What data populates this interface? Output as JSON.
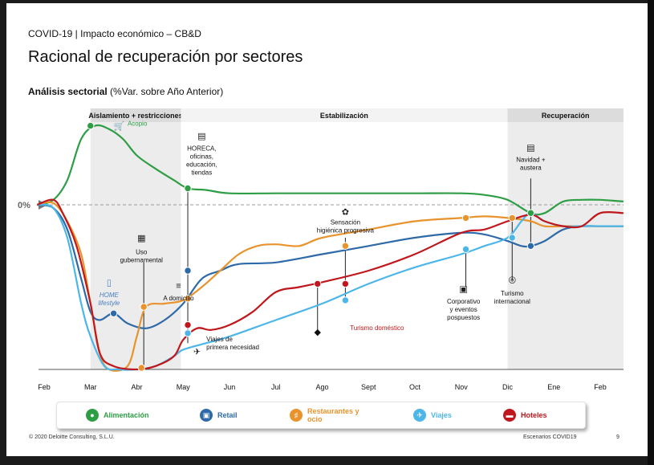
{
  "header": {
    "breadcrumb": "COVID-19 | Impacto económico – CB&D",
    "title": "Racional de recuperación por sectores",
    "subtitle_bold": "Análisis sectorial",
    "subtitle_rest": " (%Var. sobre Año Anterior)"
  },
  "footer": {
    "copyright": "© 2020 Deloitte Consulting, S.L.U.",
    "deck_name": "Escenarios COVID19",
    "page": "9"
  },
  "colors": {
    "alimentacion": "#2e9e45",
    "retail": "#2e6aa8",
    "restaurantes": "#e8932c",
    "viajes": "#4cb6e8",
    "hoteles": "#c0171c",
    "phase_bg": "#ececec",
    "zero_line": "#9a9a9a"
  },
  "chart_data": {
    "type": "line",
    "title": "Análisis sectorial (%Var. sobre Año Anterior)",
    "xlabel": "",
    "ylabel": "%Var. sobre Año Anterior",
    "ylim": [
      -100,
      50
    ],
    "zero_label": "0%",
    "grid": false,
    "legend_position": "bottom",
    "categories": [
      "Feb",
      "Mar",
      "Abr",
      "May",
      "Jun",
      "Jul",
      "Ago",
      "Sept",
      "Oct",
      "Nov",
      "Dic",
      "Ene",
      "Feb"
    ],
    "phases": [
      {
        "name": "Aislamiento + restricciones",
        "start": 1.0,
        "end": 2.95,
        "shaded": true
      },
      {
        "name": "Estabilización",
        "start": 2.95,
        "end": 10.0,
        "shaded": false
      },
      {
        "name": "Recuperación",
        "start": 10.0,
        "end": 12.5,
        "shaded": true
      }
    ],
    "series": [
      {
        "name": "Alimentación",
        "key": "alimentacion",
        "x": [
          -0.15,
          0.2,
          0.5,
          0.8,
          1.1,
          1.4,
          1.7,
          2.0,
          2.4,
          2.8,
          3.1,
          3.5,
          4.0,
          5.0,
          6.0,
          7.0,
          8.0,
          9.0,
          9.5,
          10.0,
          10.5,
          10.8,
          11.2,
          11.6,
          12.0,
          12.5
        ],
        "y": [
          0,
          3,
          15,
          40,
          48,
          46,
          40,
          30,
          22,
          15,
          10,
          9,
          7,
          7,
          7,
          7,
          7,
          7,
          6,
          3,
          -5,
          -5,
          2,
          3,
          3,
          2
        ]
      },
      {
        "name": "Retail",
        "key": "retail",
        "x": [
          -0.15,
          0.2,
          0.5,
          0.8,
          1.0,
          1.2,
          1.5,
          1.8,
          2.2,
          2.6,
          3.0,
          3.4,
          3.8,
          4.2,
          5.0,
          6.0,
          7.0,
          8.0,
          9.0,
          9.5,
          10.0,
          10.3,
          10.5,
          10.8,
          11.2,
          11.6,
          12.0,
          12.5
        ],
        "y": [
          0,
          -2,
          -15,
          -45,
          -65,
          -70,
          -66,
          -72,
          -75,
          -70,
          -60,
          -45,
          -40,
          -36,
          -35,
          -30,
          -25,
          -20,
          -17,
          -18,
          -22,
          -25,
          -25,
          -22,
          -15,
          -13,
          -13,
          -13
        ]
      },
      {
        "name": "Restaurantes y ocio",
        "key": "restaurantes",
        "x": [
          -0.15,
          0.2,
          0.5,
          0.8,
          1.0,
          1.2,
          1.4,
          1.8,
          2.0,
          2.2,
          2.6,
          3.0,
          3.4,
          3.8,
          4.2,
          4.6,
          5.0,
          5.5,
          6.0,
          7.0,
          8.0,
          9.0,
          9.5,
          10.0,
          10.5,
          10.8,
          11.2,
          11.6,
          12.0,
          12.5
        ],
        "y": [
          0,
          1,
          -10,
          -30,
          -60,
          -90,
          -100,
          -98,
          -80,
          -62,
          -60,
          -58,
          -50,
          -40,
          -30,
          -25,
          -24,
          -25,
          -20,
          -15,
          -10,
          -8,
          -7,
          -8,
          -10,
          -13,
          -13,
          -13,
          -13,
          -13
        ]
      },
      {
        "name": "Viajes",
        "key": "viajes",
        "x": [
          -0.15,
          0.2,
          0.5,
          0.8,
          1.0,
          1.3,
          1.6,
          2.0,
          2.4,
          2.8,
          3.0,
          3.5,
          4.0,
          5.0,
          6.0,
          7.0,
          8.0,
          9.0,
          9.5,
          10.0,
          10.3,
          10.5,
          10.8,
          11.2,
          11.6,
          12.0,
          12.5
        ],
        "y": [
          0,
          -2,
          -20,
          -60,
          -80,
          -98,
          -100,
          -100,
          -98,
          -92,
          -88,
          -84,
          -80,
          -70,
          -60,
          -48,
          -38,
          -30,
          -25,
          -20,
          -10,
          -5,
          -10,
          -13,
          -13,
          -13,
          -13
        ]
      },
      {
        "name": "Hoteles",
        "key": "hoteles",
        "x": [
          -0.15,
          0.2,
          0.4,
          0.7,
          1.0,
          1.2,
          1.5,
          2.0,
          2.4,
          2.8,
          3.0,
          3.3,
          3.6,
          4.0,
          4.5,
          5.0,
          5.5,
          6.0,
          7.0,
          8.0,
          9.0,
          9.5,
          10.0,
          10.5,
          10.8,
          11.2,
          11.6,
          12.0,
          12.5
        ],
        "y": [
          0,
          3,
          -5,
          -25,
          -60,
          -90,
          -98,
          -100,
          -98,
          -92,
          -82,
          -75,
          -76,
          -73,
          -65,
          -53,
          -50,
          -47,
          -40,
          -30,
          -17,
          -15,
          -10,
          -6,
          -10,
          -13,
          -13,
          -5,
          -5
        ]
      }
    ],
    "markers": [
      {
        "series": "alimentacion",
        "x": 1.0,
        "y": 48
      },
      {
        "series": "alimentacion",
        "x": 3.1,
        "y": 10
      },
      {
        "series": "alimentacion",
        "x": 10.5,
        "y": -5
      },
      {
        "series": "retail",
        "x": 1.5,
        "y": -66
      },
      {
        "series": "retail",
        "x": 3.1,
        "y": -40
      },
      {
        "series": "retail",
        "x": 10.5,
        "y": -25
      },
      {
        "series": "restaurantes",
        "x": 2.15,
        "y": -62
      },
      {
        "series": "restaurantes",
        "x": 3.1,
        "y": -57
      },
      {
        "series": "restaurantes",
        "x": 6.5,
        "y": -25
      },
      {
        "series": "restaurantes",
        "x": 9.1,
        "y": -8
      },
      {
        "series": "restaurantes",
        "x": 10.1,
        "y": -8
      },
      {
        "series": "viajes",
        "x": 3.1,
        "y": -78
      },
      {
        "series": "viajes",
        "x": 6.5,
        "y": -58
      },
      {
        "series": "viajes",
        "x": 9.1,
        "y": -27
      },
      {
        "series": "viajes",
        "x": 10.1,
        "y": -20
      },
      {
        "series": "hoteles",
        "x": 3.1,
        "y": -73
      },
      {
        "series": "hoteles",
        "x": 5.9,
        "y": -48
      },
      {
        "series": "hoteles",
        "x": 6.5,
        "y": -48
      },
      {
        "series": "restaurantes",
        "x": 2.1,
        "y": -99
      }
    ],
    "annotations": [
      {
        "text": [
          "Acopio"
        ],
        "x": 1.8,
        "y": 48,
        "color": "#2e9e45",
        "anchor": "start"
      },
      {
        "text": [
          "HORECA,",
          "oficinas,",
          "educación,",
          "tiendas"
        ],
        "x": 3.4,
        "y": 33,
        "color": "#111",
        "anchor": "middle"
      },
      {
        "text": [
          "Navidad +",
          "austera"
        ],
        "x": 10.5,
        "y": 26,
        "color": "#111",
        "anchor": "middle"
      },
      {
        "text": [
          "Sensación",
          "higiénica progresiva"
        ],
        "x": 6.5,
        "y": -12,
        "color": "#111",
        "anchor": "middle"
      },
      {
        "text": [
          "Uso",
          "gubernamental"
        ],
        "x": 2.1,
        "y": -30,
        "color": "#111",
        "anchor": "middle"
      },
      {
        "text": [
          "A domicilio"
        ],
        "x": 2.9,
        "y": -58,
        "color": "#111",
        "anchor": "middle"
      },
      {
        "text": [
          "HOME",
          "lifestyle"
        ],
        "x": 1.4,
        "y": -56,
        "color": "#4a7fc1",
        "anchor": "middle",
        "italic": true
      },
      {
        "text": [
          "Corporativo",
          "y eventos",
          "pospuestos"
        ],
        "x": 9.05,
        "y": -60,
        "color": "#111",
        "anchor": "middle"
      },
      {
        "text": [
          "Turismo",
          "internacional"
        ],
        "x": 10.1,
        "y": -55,
        "color": "#111",
        "anchor": "middle"
      },
      {
        "text": [
          "Turismo doméstico"
        ],
        "x": 6.6,
        "y": -76,
        "color": "#c0171c",
        "anchor": "start"
      },
      {
        "text": [
          "Viajes de",
          "primera necesidad"
        ],
        "x": 3.5,
        "y": -83,
        "color": "#111",
        "anchor": "start"
      }
    ],
    "legend": [
      {
        "label": "Alimentación",
        "key": "alimentacion",
        "icon": "apple-icon"
      },
      {
        "label": "Retail",
        "key": "retail",
        "icon": "cart-icon"
      },
      {
        "label": "Restaurantes\ny ocio",
        "key": "restaurantes",
        "icon": "cutlery-icon"
      },
      {
        "label": "Viajes",
        "key": "viajes",
        "icon": "plane-icon"
      },
      {
        "label": "Hoteles",
        "key": "hoteles",
        "icon": "bed-icon"
      }
    ]
  },
  "legend_items": [
    {
      "label": "Alimentación"
    },
    {
      "label": "Retail"
    },
    {
      "label": "Restaurantes y ocio"
    },
    {
      "label": "Viajes"
    },
    {
      "label": "Hoteles"
    }
  ]
}
